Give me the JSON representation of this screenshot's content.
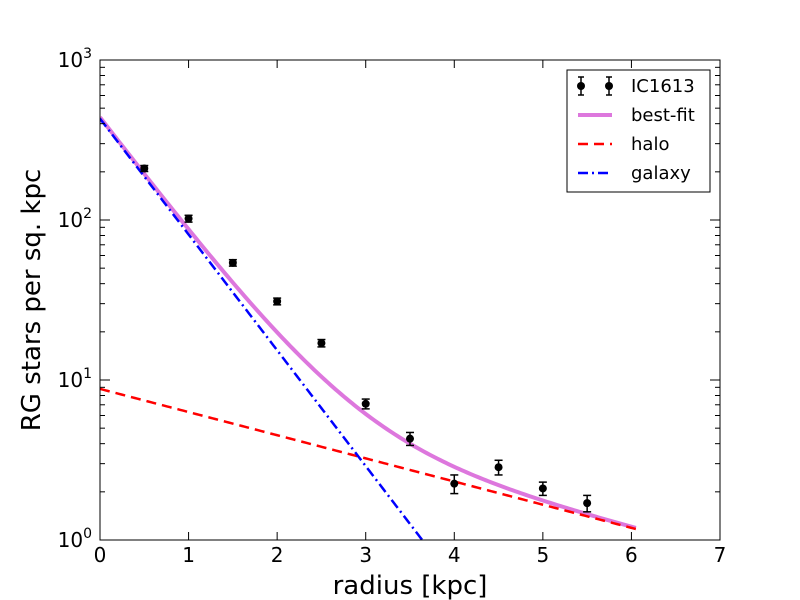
{
  "chart_data": {
    "type": "scatter",
    "xlabel": "radius [kpc]",
    "ylabel": "RG stars per sq. kpc",
    "xlim": [
      0,
      7
    ],
    "ylim": [
      1,
      1000
    ],
    "yscale": "log",
    "grid": false,
    "legend_position": "top-right",
    "x_ticks": [
      "0",
      "1",
      "2",
      "3",
      "4",
      "5",
      "6",
      "7"
    ],
    "y_ticks": [
      {
        "base": "10",
        "exp": "0"
      },
      {
        "base": "10",
        "exp": "1"
      },
      {
        "base": "10",
        "exp": "2"
      },
      {
        "base": "10",
        "exp": "3"
      }
    ],
    "series": [
      {
        "name": "IC1613",
        "style": "errorbar",
        "color": "#000000",
        "x": [
          0.5,
          1.0,
          1.5,
          2.0,
          2.5,
          3.0,
          3.5,
          4.0,
          4.5,
          5.0,
          5.5
        ],
        "y": [
          210,
          102,
          54,
          31,
          17,
          7.1,
          4.3,
          2.25,
          2.85,
          2.1,
          1.7
        ],
        "err": [
          9,
          5,
          2.5,
          1.5,
          0.9,
          0.5,
          0.4,
          0.3,
          0.3,
          0.2,
          0.2
        ]
      },
      {
        "name": "best-fit",
        "style": "solid",
        "color": "#dd77dd",
        "model": "sum of galaxy and halo",
        "x_range": [
          0,
          6.05
        ]
      },
      {
        "name": "halo",
        "style": "dashed",
        "color": "#ff0000",
        "model": "exponential",
        "amplitude": 8.8,
        "scale_length": 3.0,
        "x_range": [
          0,
          6.05
        ]
      },
      {
        "name": "galaxy",
        "style": "dashdot",
        "color": "#0000ff",
        "model": "exponential",
        "amplitude": 430,
        "scale_length": 0.6,
        "x_range": [
          0,
          4.2
        ]
      }
    ]
  }
}
